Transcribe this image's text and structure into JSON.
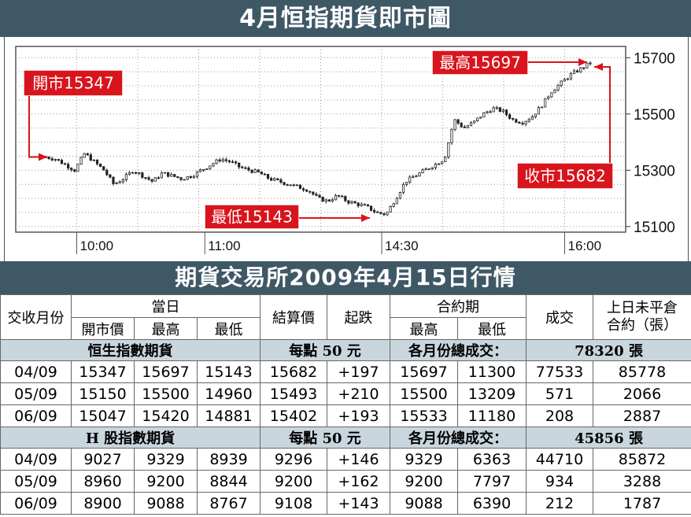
{
  "title": "4月恒指期貨即市圖",
  "table_title": "期貨交易所2009年4月15日行情",
  "colors": {
    "banner": "#3f5866",
    "annotation": "#d8141c",
    "section_band": "#c9d6de"
  },
  "chart_data": {
    "type": "candlestick",
    "title": "4月恒指期貨即市圖",
    "ylim": [
      15080,
      15740
    ],
    "yticks": [
      15100,
      15300,
      15500,
      15700
    ],
    "xticks": [
      "10:00",
      "11:00",
      "14:30",
      "16:00"
    ],
    "grid": true,
    "annotations": {
      "open": {
        "label": "開市15347",
        "value": 15347
      },
      "high": {
        "label": "最高15697",
        "value": 15697
      },
      "low": {
        "label": "最低15143",
        "value": 15143
      },
      "close": {
        "label": "收市15682",
        "value": 15682
      }
    },
    "session_path": [
      15347,
      15340,
      15320,
      15300,
      15360,
      15330,
      15300,
      15250,
      15270,
      15300,
      15280,
      15260,
      15290,
      15280,
      15270,
      15280,
      15300,
      15320,
      15340,
      15330,
      15310,
      15300,
      15290,
      15270,
      15260,
      15250,
      15240,
      15230,
      15200,
      15190,
      15210,
      15190,
      15180,
      15170,
      15150,
      15143,
      15200,
      15260,
      15280,
      15300,
      15320,
      15340,
      15480,
      15450,
      15470,
      15500,
      15520,
      15510,
      15480,
      15470,
      15490,
      15530,
      15580,
      15610,
      15640,
      15660,
      15682
    ]
  },
  "table": {
    "headers": {
      "month": "交收月份",
      "today": "當日",
      "open": "開市價",
      "high": "最高",
      "low": "最低",
      "settle": "結算價",
      "change": "起跌",
      "contract": "合約期",
      "c_high": "最高",
      "c_low": "最低",
      "volume": "成交",
      "oi_line1": "上日未平倉",
      "oi_line2": "合約（張）"
    },
    "sections": [
      {
        "name": "恒生指數期貨",
        "per_point": "每點 50 元",
        "total_label": "各月份總成交：",
        "total_value": "78320 張",
        "rows": [
          [
            "04/09",
            "15347",
            "15697",
            "15143",
            "15682",
            "+197",
            "15697",
            "11300",
            "77533",
            "85778"
          ],
          [
            "05/09",
            "15150",
            "15500",
            "14960",
            "15493",
            "+210",
            "15500",
            "13209",
            "571",
            "2066"
          ],
          [
            "06/09",
            "15047",
            "15420",
            "14881",
            "15402",
            "+193",
            "15533",
            "11180",
            "208",
            "2887"
          ]
        ]
      },
      {
        "name": "H 股指數期貨",
        "per_point": "每點 50 元",
        "total_label": "各月份總成交：",
        "total_value": "45856 張",
        "rows": [
          [
            "04/09",
            "9027",
            "9329",
            "8939",
            "9296",
            "+146",
            "9329",
            "6363",
            "44710",
            "85872"
          ],
          [
            "05/09",
            "8960",
            "9200",
            "8844",
            "9200",
            "+162",
            "9200",
            "7797",
            "934",
            "3288"
          ],
          [
            "06/09",
            "8900",
            "9088",
            "8767",
            "9108",
            "+143",
            "9088",
            "6390",
            "212",
            "1787"
          ]
        ]
      }
    ]
  }
}
